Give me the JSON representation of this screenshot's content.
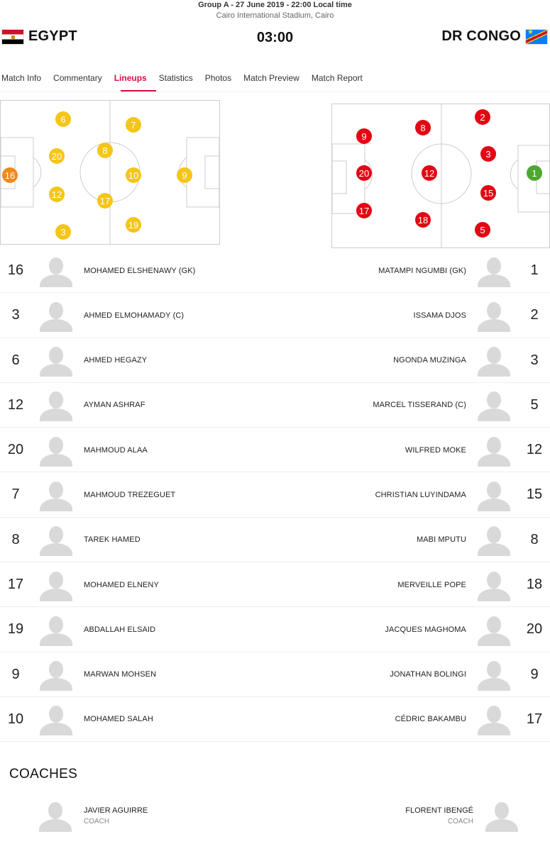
{
  "match": {
    "info_line": "Group A  -  27 June 2019  -  22:00 Local time",
    "venue": "Cairo International Stadium, Cairo",
    "home": "EGYPT",
    "away": "DR CONGO",
    "score": "03:00"
  },
  "tabs": [
    {
      "label": "Match Info",
      "active": false
    },
    {
      "label": "Commentary",
      "active": false
    },
    {
      "label": "Lineups",
      "active": true
    },
    {
      "label": "Statistics",
      "active": false
    },
    {
      "label": "Photos",
      "active": false
    },
    {
      "label": "Match Preview",
      "active": false
    },
    {
      "label": "Match Report",
      "active": false
    }
  ],
  "colors": {
    "accent": "#d31145",
    "home_marker": "#f5c518",
    "home_keeper": "#f08a1c",
    "away_marker": "#e30613",
    "away_keeper": "#4ea72e"
  },
  "pitch_home": [
    "16",
    "20",
    "12",
    "6",
    "3",
    "8",
    "17",
    "7",
    "19",
    "10",
    "9"
  ],
  "pitch_away": [
    "1",
    "2",
    "3",
    "15",
    "5",
    "8",
    "12",
    "18",
    "9",
    "20",
    "17"
  ],
  "lineup": [
    {
      "home_num": "16",
      "home_name": "MOHAMED ELSHENAWY (GK)",
      "away_name": "MATAMPI NGUMBI (GK)",
      "away_num": "1"
    },
    {
      "home_num": "3",
      "home_name": "AHMED ELMOHAMADY (C)",
      "away_name": "ISSAMA DJOS",
      "away_num": "2"
    },
    {
      "home_num": "6",
      "home_name": "AHMED HEGAZY",
      "away_name": "NGONDA MUZINGA",
      "away_num": "3"
    },
    {
      "home_num": "12",
      "home_name": "AYMAN ASHRAF",
      "away_name": "MARCEL TISSERAND (C)",
      "away_num": "5"
    },
    {
      "home_num": "20",
      "home_name": "MAHMOUD ALAA",
      "away_name": "WILFRED MOKE",
      "away_num": "12"
    },
    {
      "home_num": "7",
      "home_name": "MAHMOUD TREZEGUET",
      "away_name": "CHRISTIAN LUYINDAMA",
      "away_num": "15"
    },
    {
      "home_num": "8",
      "home_name": "TAREK HAMED",
      "away_name": "MABI MPUTU",
      "away_num": "8"
    },
    {
      "home_num": "17",
      "home_name": "MOHAMED ELNENY",
      "away_name": "MERVEILLE POPE",
      "away_num": "18"
    },
    {
      "home_num": "19",
      "home_name": "ABDALLAH ELSAID",
      "away_name": "JACQUES MAGHOMA",
      "away_num": "20"
    },
    {
      "home_num": "9",
      "home_name": "MARWAN MOHSEN",
      "away_name": "JONATHAN BOLINGI",
      "away_num": "9"
    },
    {
      "home_num": "10",
      "home_name": "MOHAMED SALAH",
      "away_name": "CÉDRIC BAKAMBU",
      "away_num": "17"
    }
  ],
  "coaches": {
    "title": "COACHES",
    "home_name": "JAVIER AGUIRRE",
    "home_role": "COACH",
    "away_name": "FLORENT IBENGÉ",
    "away_role": "COACH"
  }
}
